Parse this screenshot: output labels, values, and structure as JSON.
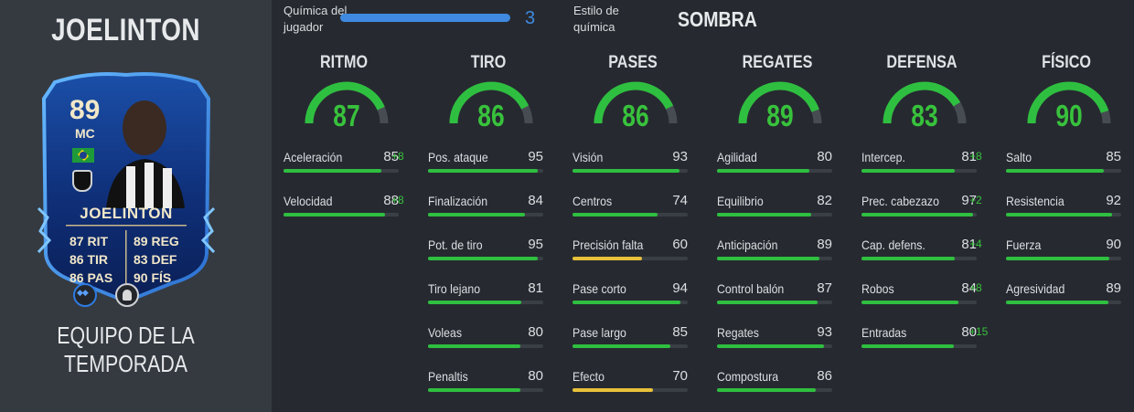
{
  "player": {
    "name": "JOELINTON",
    "card_rating": "89",
    "card_position": "MC",
    "card_name": "JOELINTON",
    "card_stats_left": [
      "87 RIT",
      "86 TIR",
      "86 PAS"
    ],
    "card_stats_right": [
      "89 REG",
      "83 DEF",
      "90 FÍS"
    ],
    "team_of_season": "EQUIPO DE LA TEMPORADA"
  },
  "chemistry": {
    "label_line1": "Química del",
    "label_line2": "jugador",
    "value": "3",
    "progress": 1.0,
    "style_label_line1": "Estilo de",
    "style_label_line2": "química",
    "style_value": "SOMBRA"
  },
  "colors": {
    "green": "#2fbf40",
    "yellow": "#e8c13a",
    "blue": "#3f8ae0"
  },
  "columns": [
    {
      "title": "RITMO",
      "value": 87,
      "stats": [
        {
          "label": "Aceleración",
          "value": "85",
          "boost": "+8"
        },
        {
          "label": "Velocidad",
          "value": "88",
          "boost": "+8"
        }
      ]
    },
    {
      "title": "TIRO",
      "value": 86,
      "stats": [
        {
          "label": "Pos. ataque",
          "value": "95",
          "boost": ""
        },
        {
          "label": "Finalización",
          "value": "84",
          "boost": ""
        },
        {
          "label": "Pot. de tiro",
          "value": "95",
          "boost": ""
        },
        {
          "label": "Tiro lejano",
          "value": "81",
          "boost": ""
        },
        {
          "label": "Voleas",
          "value": "80",
          "boost": ""
        },
        {
          "label": "Penaltis",
          "value": "80",
          "boost": ""
        }
      ]
    },
    {
      "title": "PASES",
      "value": 86,
      "stats": [
        {
          "label": "Visión",
          "value": "93",
          "boost": ""
        },
        {
          "label": "Centros",
          "value": "74",
          "boost": ""
        },
        {
          "label": "Precisión falta",
          "value": "60",
          "boost": ""
        },
        {
          "label": "Pase corto",
          "value": "94",
          "boost": ""
        },
        {
          "label": "Pase largo",
          "value": "85",
          "boost": ""
        },
        {
          "label": "Efecto",
          "value": "70",
          "boost": ""
        }
      ]
    },
    {
      "title": "REGATES",
      "value": 89,
      "stats": [
        {
          "label": "Agilidad",
          "value": "80",
          "boost": ""
        },
        {
          "label": "Equilibrio",
          "value": "82",
          "boost": ""
        },
        {
          "label": "Anticipación",
          "value": "89",
          "boost": ""
        },
        {
          "label": "Control balón",
          "value": "87",
          "boost": ""
        },
        {
          "label": "Regates",
          "value": "93",
          "boost": ""
        },
        {
          "label": "Compostura",
          "value": "86",
          "boost": ""
        }
      ]
    },
    {
      "title": "DEFENSA",
      "value": 83,
      "stats": [
        {
          "label": "Intercep.",
          "value": "81",
          "boost": "+8"
        },
        {
          "label": "Prec. cabezazo",
          "value": "97",
          "boost": "+2"
        },
        {
          "label": "Cap. defens.",
          "value": "81",
          "boost": "+4"
        },
        {
          "label": "Robos",
          "value": "84",
          "boost": "+8"
        },
        {
          "label": "Entradas",
          "value": "80",
          "boost": "+15"
        }
      ]
    },
    {
      "title": "FÍSICO",
      "value": 90,
      "stats": [
        {
          "label": "Salto",
          "value": "85",
          "boost": ""
        },
        {
          "label": "Resistencia",
          "value": "92",
          "boost": ""
        },
        {
          "label": "Fuerza",
          "value": "90",
          "boost": ""
        },
        {
          "label": "Agresividad",
          "value": "89",
          "boost": ""
        }
      ]
    }
  ]
}
